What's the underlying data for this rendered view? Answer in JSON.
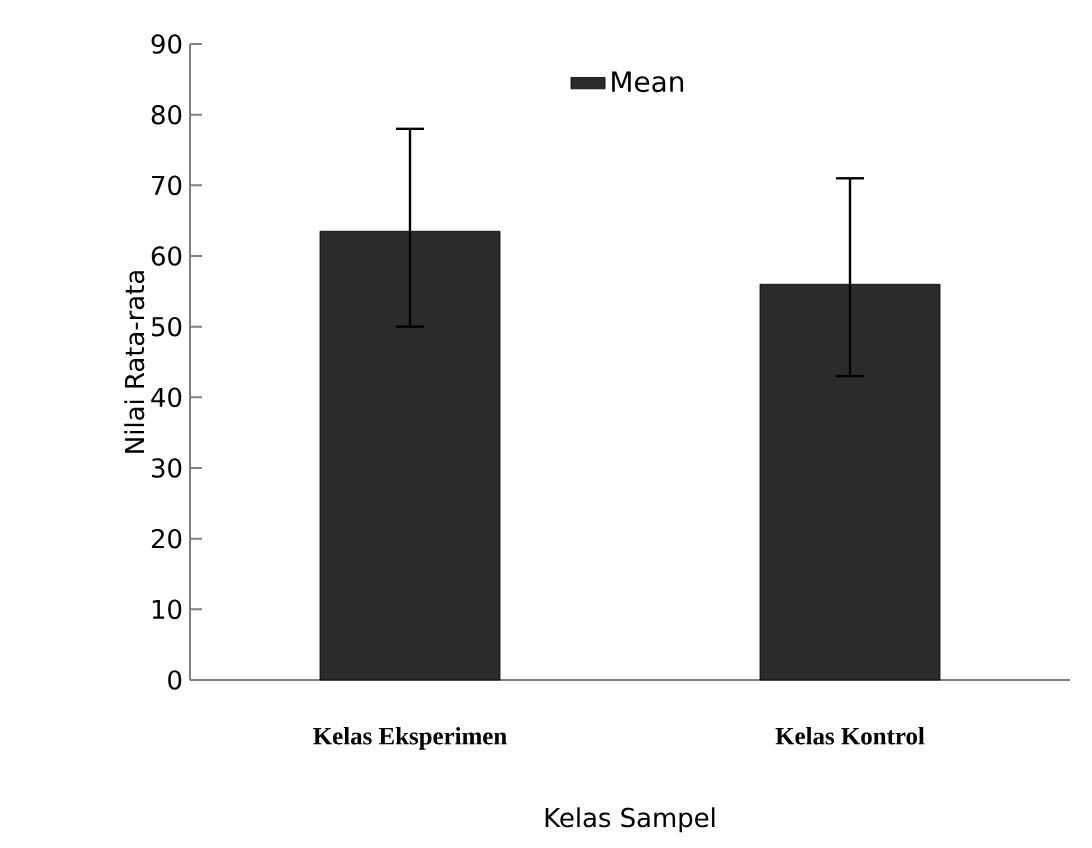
{
  "chart_data": {
    "type": "bar",
    "xlabel": "Kelas Sampel",
    "ylabel": "Nilai Rata-rata",
    "categories": [
      "Kelas Eksperimen",
      "Kelas Kontrol"
    ],
    "series": [
      {
        "name": "Mean",
        "color": "#2b2b2b",
        "values": [
          63.5,
          56
        ],
        "errors": [
          [
            50,
            78
          ],
          [
            43,
            71
          ]
        ]
      }
    ],
    "ylim": [
      0,
      90
    ],
    "yticks": [
      0,
      10,
      20,
      30,
      40,
      50,
      60,
      70,
      80,
      90
    ],
    "grid": false,
    "legend": "top"
  }
}
